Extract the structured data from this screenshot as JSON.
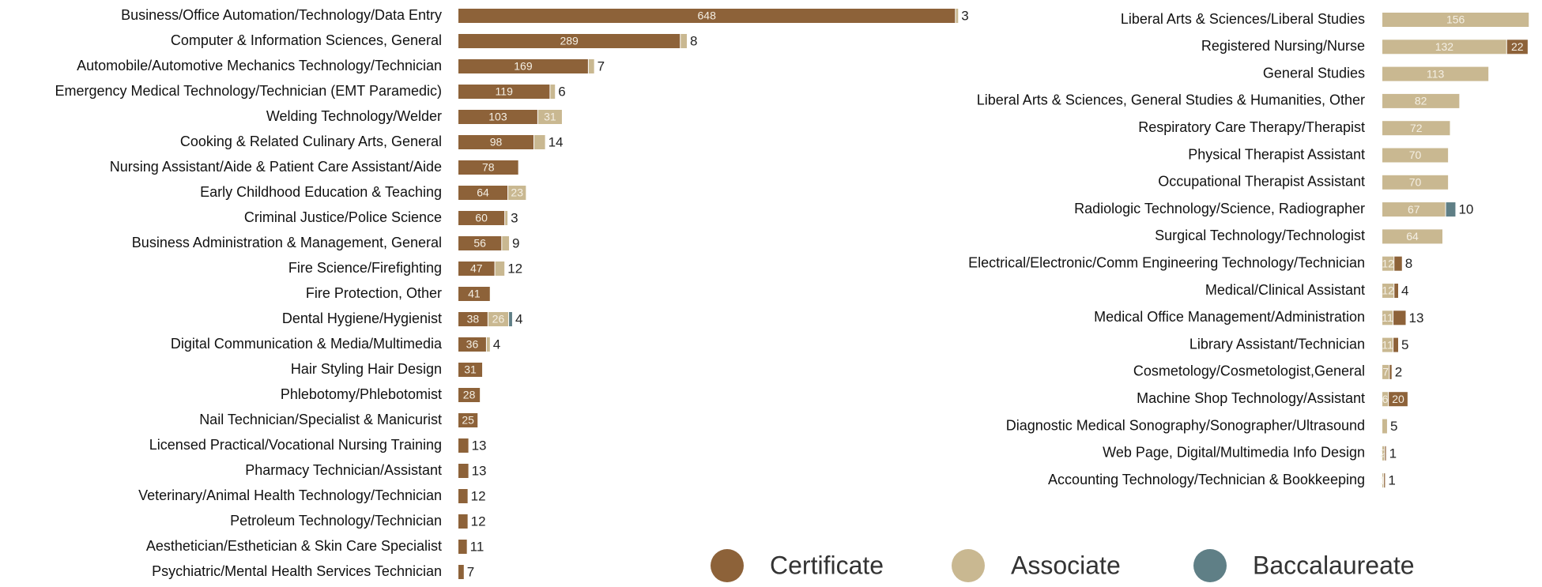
{
  "chart_data": {
    "type": "bar",
    "orientation": "horizontal",
    "stacked": true,
    "legend": "bottom",
    "series": [
      {
        "name": "Certificate",
        "color": "#8d6239"
      },
      {
        "name": "Associate",
        "color": "#c9b891"
      },
      {
        "name": "Baccalaureate",
        "color": "#5f7f86"
      }
    ],
    "panels": [
      {
        "categories": [
          "Business/Office Automation/Technology/Data Entry",
          "Computer & Information Sciences, General",
          "Automobile/Automotive Mechanics Technology/Technician",
          "Emergency Medical Technology/Technician (EMT Paramedic)",
          "Welding Technology/Welder",
          "Cooking & Related Culinary Arts, General",
          "Nursing Assistant/Aide & Patient Care Assistant/Aide",
          "Early Childhood Education & Teaching",
          "Criminal Justice/Police Science",
          "Business Administration & Management, General",
          "Fire Science/Firefighting",
          "Fire Protection, Other",
          "Dental Hygiene/Hygienist",
          "Digital Communication & Media/Multimedia",
          "Hair Styling Hair Design",
          "Phlebotomy/Phlebotomist",
          "Nail Technician/Specialist & Manicurist",
          "Licensed Practical/Vocational Nursing Training",
          "Pharmacy Technician/Assistant",
          "Veterinary/Animal Health Technology/Technician",
          "Petroleum Technology/Technician",
          "Aesthetician/Esthetician & Skin Care Specialist",
          "Psychiatric/Mental Health Services Technician"
        ],
        "xlim": [
          0,
          660
        ],
        "stack_order": [
          0,
          1,
          2
        ],
        "values": [
          [
            648,
            289,
            169,
            119,
            103,
            98,
            78,
            64,
            60,
            56,
            47,
            41,
            38,
            36,
            31,
            28,
            25,
            13,
            13,
            12,
            12,
            11,
            7
          ],
          [
            3,
            8,
            7,
            6,
            31,
            14,
            null,
            23,
            3,
            9,
            12,
            null,
            26,
            4,
            null,
            null,
            null,
            null,
            null,
            null,
            null,
            null,
            null
          ],
          [
            null,
            null,
            null,
            null,
            null,
            null,
            null,
            null,
            null,
            null,
            null,
            null,
            4,
            null,
            null,
            null,
            null,
            null,
            null,
            null,
            null,
            null,
            null
          ]
        ]
      },
      {
        "categories": [
          "Liberal Arts & Sciences/Liberal Studies",
          "Registered Nursing/Nurse",
          "General Studies",
          "Liberal Arts & Sciences, General Studies & Humanities, Other",
          "Respiratory Care Therapy/Therapist",
          "Physical Therapist Assistant",
          "Occupational Therapist Assistant",
          "Radiologic Technology/Science, Radiographer",
          "Surgical Technology/Technologist",
          "Electrical/Electronic/Comm Engineering Technology/Technician",
          "Medical/Clinical Assistant",
          "Medical Office Management/Administration",
          "Library Assistant/Technician",
          "Cosmetology/Cosmetologist,General",
          "Machine Shop Technology/Assistant",
          "Diagnostic Medical Sonography/Sonographer/Ultrasound",
          "Web Page, Digital/Multimedia Info Design",
          "Accounting Technology/Technician & Bookkeeping"
        ],
        "xlim": [
          0,
          160
        ],
        "stack_order": [
          1,
          0,
          2
        ],
        "values": [
          [
            null,
            22,
            null,
            null,
            null,
            null,
            null,
            null,
            null,
            8,
            4,
            13,
            5,
            2,
            20,
            null,
            1,
            1
          ],
          [
            156,
            132,
            113,
            82,
            72,
            70,
            70,
            67,
            64,
            12,
            12,
            11,
            11,
            7,
            6,
            5,
            2,
            1
          ],
          [
            null,
            null,
            null,
            null,
            null,
            null,
            null,
            10,
            null,
            null,
            null,
            null,
            null,
            null,
            null,
            null,
            null,
            null
          ]
        ]
      }
    ]
  }
}
